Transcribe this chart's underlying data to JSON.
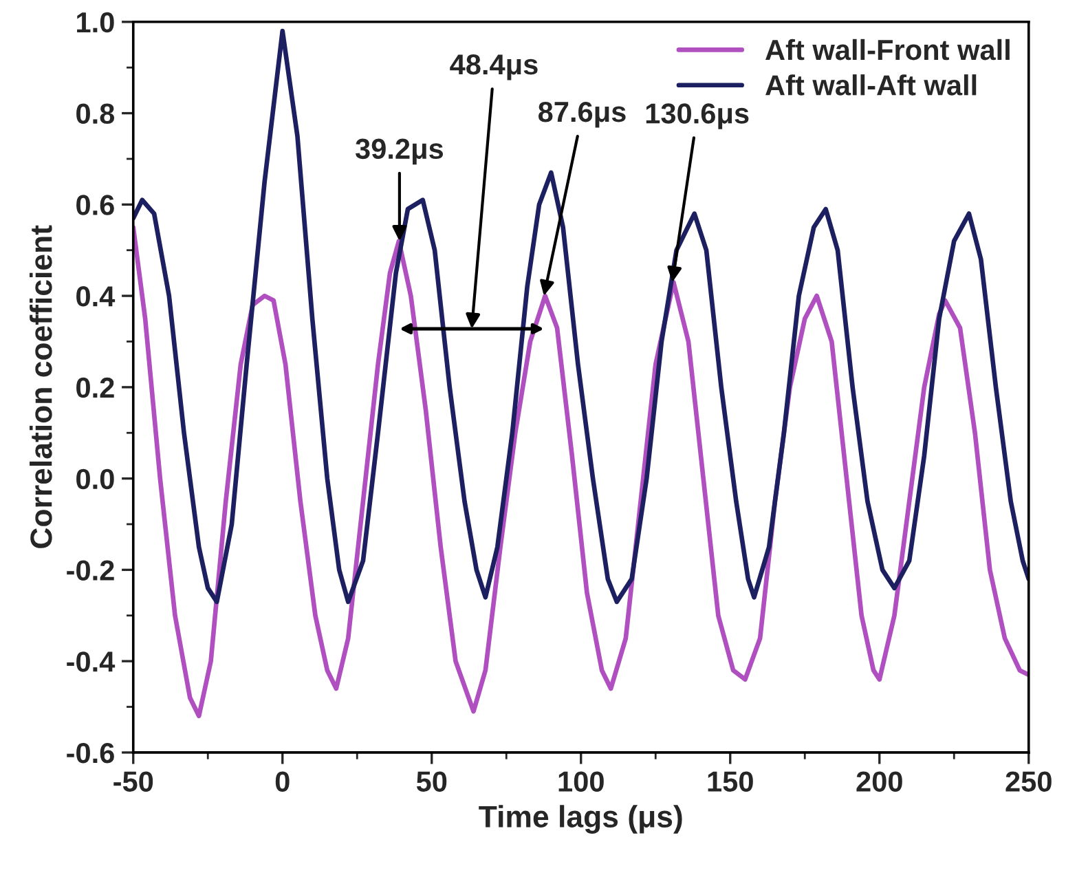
{
  "chart_data": {
    "type": "line",
    "xlabel": "Time lags (μs)",
    "ylabel": "Correlation coefficient",
    "xlim": [
      -50,
      250
    ],
    "xticks": [
      -50,
      0,
      50,
      100,
      150,
      200,
      250
    ],
    "ylim": [
      -0.6,
      1.0
    ],
    "yticks": [
      -0.6,
      -0.4,
      -0.2,
      {
        "value": 0,
        "label": "0.0"
      },
      0.2,
      0.4,
      0.6,
      0.8,
      {
        "value": 1,
        "label": "1.0"
      }
    ],
    "grid": false,
    "legend": "top right",
    "line_style": "solid",
    "marker": "none",
    "series": [
      {
        "name": "Aft wall-Front wall",
        "color": "#b04fc0",
        "x": [
          -50,
          -46,
          -41,
          -36,
          -31,
          -28,
          -24,
          -19,
          -14,
          -10,
          -6,
          -3,
          1,
          6,
          11,
          15,
          18,
          22,
          27,
          32,
          36,
          39,
          43,
          48,
          53,
          58,
          64,
          68,
          73,
          78,
          83,
          88,
          92,
          97,
          102,
          107,
          110,
          115,
          120,
          125,
          131,
          136,
          141,
          146,
          151,
          155,
          160,
          165,
          170,
          175,
          179,
          184,
          189,
          194,
          198,
          200,
          205,
          210,
          215,
          220,
          222,
          227,
          232,
          237,
          242,
          247,
          250
        ],
        "values": [
          0.55,
          0.35,
          0.0,
          -0.3,
          -0.48,
          -0.52,
          -0.4,
          -0.05,
          0.25,
          0.38,
          0.4,
          0.39,
          0.25,
          -0.05,
          -0.3,
          -0.42,
          -0.46,
          -0.35,
          -0.05,
          0.25,
          0.45,
          0.52,
          0.4,
          0.15,
          -0.15,
          -0.4,
          -0.51,
          -0.42,
          -0.15,
          0.1,
          0.3,
          0.4,
          0.33,
          0.05,
          -0.25,
          -0.42,
          -0.46,
          -0.35,
          -0.05,
          0.25,
          0.43,
          0.3,
          0.0,
          -0.3,
          -0.42,
          -0.44,
          -0.35,
          -0.05,
          0.2,
          0.35,
          0.4,
          0.3,
          0.0,
          -0.3,
          -0.42,
          -0.44,
          -0.3,
          -0.05,
          0.2,
          0.36,
          0.39,
          0.33,
          0.1,
          -0.2,
          -0.35,
          -0.42,
          -0.43
        ]
      },
      {
        "name": "Aft wall-Aft wall",
        "color": "#1c2060",
        "x": [
          -50,
          -47,
          -43,
          -38,
          -33,
          -28,
          -25,
          -22,
          -17,
          -12,
          -6,
          0,
          5,
          10,
          15,
          19,
          22,
          27,
          32,
          38,
          42,
          47,
          51,
          56,
          61,
          65,
          68,
          72,
          77,
          82,
          86,
          90,
          94,
          99,
          104,
          109,
          112,
          117,
          122,
          127,
          132,
          138,
          142,
          147,
          152,
          156,
          158,
          163,
          168,
          173,
          178,
          182,
          186,
          191,
          196,
          201,
          205,
          210,
          215,
          220,
          225,
          230,
          234,
          239,
          244,
          248,
          250
        ],
        "values": [
          0.57,
          0.61,
          0.58,
          0.4,
          0.1,
          -0.15,
          -0.24,
          -0.27,
          -0.1,
          0.25,
          0.65,
          0.98,
          0.75,
          0.35,
          0.0,
          -0.2,
          -0.27,
          -0.18,
          0.1,
          0.45,
          0.59,
          0.61,
          0.5,
          0.2,
          -0.05,
          -0.2,
          -0.26,
          -0.15,
          0.1,
          0.42,
          0.6,
          0.67,
          0.55,
          0.25,
          0.0,
          -0.22,
          -0.27,
          -0.22,
          0.0,
          0.3,
          0.5,
          0.58,
          0.5,
          0.2,
          -0.05,
          -0.22,
          -0.26,
          -0.15,
          0.1,
          0.4,
          0.55,
          0.59,
          0.5,
          0.2,
          -0.05,
          -0.2,
          -0.24,
          -0.18,
          0.05,
          0.35,
          0.52,
          0.58,
          0.48,
          0.2,
          -0.05,
          -0.18,
          -0.22
        ]
      }
    ],
    "annotations": [
      {
        "text": "39.2μs",
        "x": 39.2,
        "y": 0.52
      },
      "48.4μs",
      {
        "text": "87.6μs",
        "x": 87.6,
        "y": 0.4
      },
      {
        "text": "130.6μs",
        "x": 130.6,
        "y": 0.43
      }
    ]
  }
}
